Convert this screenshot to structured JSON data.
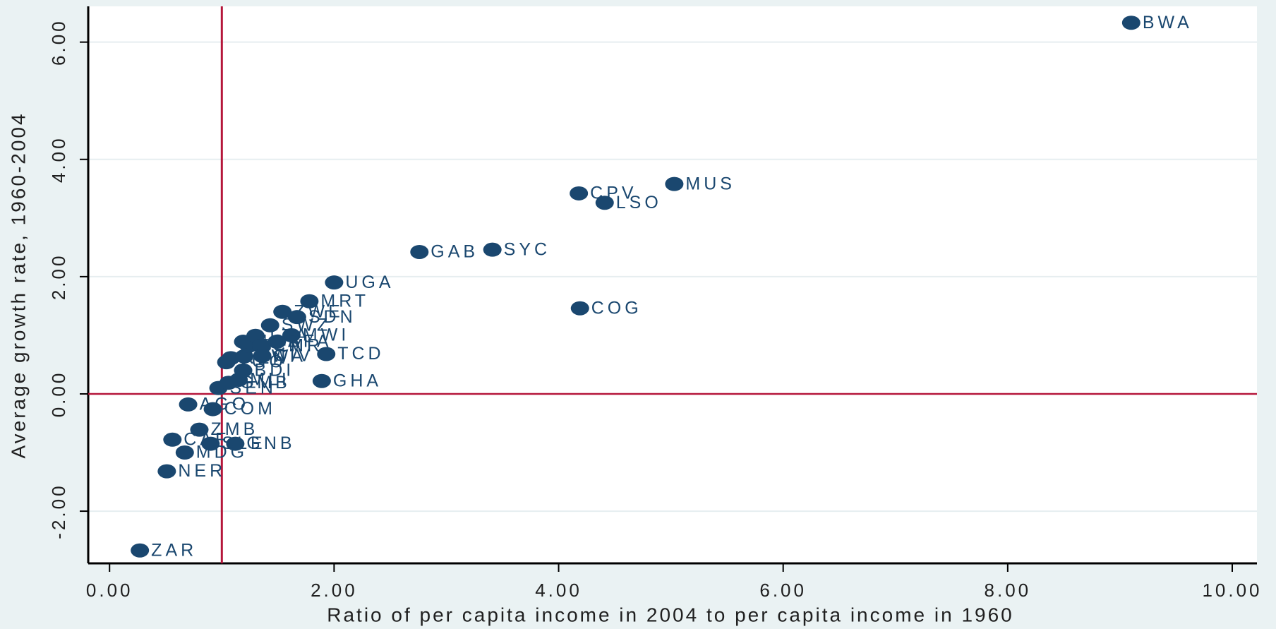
{
  "chart_data": {
    "type": "scatter",
    "x_label": "Ratio of per capita income in 2004 to per capita income in 1960",
    "y_label": "Average growth rate, 1960-2004",
    "labels": [
      "BWA",
      "MUS",
      "CPV",
      "LSO",
      "SYC",
      "GAB",
      "COG",
      "UGA",
      "MRT",
      "TCD",
      "GHA",
      "ZAR",
      "NER",
      "MDG",
      "CAF",
      "ZMB",
      "AGO",
      "COM",
      "SEN",
      "GNB",
      "SLE",
      "MLI",
      "TGO",
      "KEN",
      "BDI",
      "RWA",
      "BEN",
      "NGA",
      "TZA",
      "CMR",
      "SWZ",
      "ZWE",
      "MWI",
      "SDN",
      "BFA",
      "CIV",
      "GMB"
    ],
    "x": [
      9.1,
      5.03,
      4.18,
      4.41,
      3.41,
      2.76,
      4.19,
      2.0,
      1.78,
      1.93,
      1.89,
      0.27,
      0.51,
      0.67,
      0.56,
      0.8,
      0.7,
      0.92,
      0.97,
      1.12,
      0.9,
      1.15,
      1.04,
      1.08,
      1.19,
      1.2,
      1.24,
      1.19,
      1.3,
      1.35,
      1.43,
      1.54,
      1.62,
      1.67,
      1.49,
      1.36,
      1.06
    ],
    "values": [
      6.33,
      3.58,
      3.42,
      3.26,
      2.46,
      2.42,
      1.46,
      1.9,
      1.58,
      0.68,
      0.22,
      -2.67,
      -1.32,
      -1.0,
      -0.78,
      -0.61,
      -0.18,
      -0.26,
      0.1,
      -0.85,
      -0.85,
      0.24,
      0.54,
      0.61,
      0.4,
      0.64,
      0.82,
      0.89,
      0.99,
      0.82,
      1.17,
      1.4,
      1.0,
      1.31,
      0.89,
      0.65,
      0.19
    ],
    "color": "#1a476f",
    "xlim": [
      -0.19,
      10.22
    ],
    "ylim": [
      -2.89,
      6.61
    ],
    "xticks": [
      {
        "value": 0,
        "label": "0.00"
      },
      {
        "value": 2,
        "label": "2.00"
      },
      {
        "value": 4,
        "label": "4.00"
      },
      {
        "value": 6,
        "label": "6.00"
      },
      {
        "value": 8,
        "label": "8.00"
      },
      {
        "value": 10,
        "label": "10.00"
      }
    ],
    "yticks": [
      {
        "value": -2,
        "label": "-2.00"
      },
      {
        "value": 0,
        "label": "0.00"
      },
      {
        "value": 2,
        "label": "2.00"
      },
      {
        "value": 4,
        "label": "4.00"
      },
      {
        "value": 6,
        "label": "6.00"
      }
    ],
    "grid": true,
    "reference_lines": {
      "x": 1,
      "y": 0,
      "color": "#b5163a"
    }
  }
}
